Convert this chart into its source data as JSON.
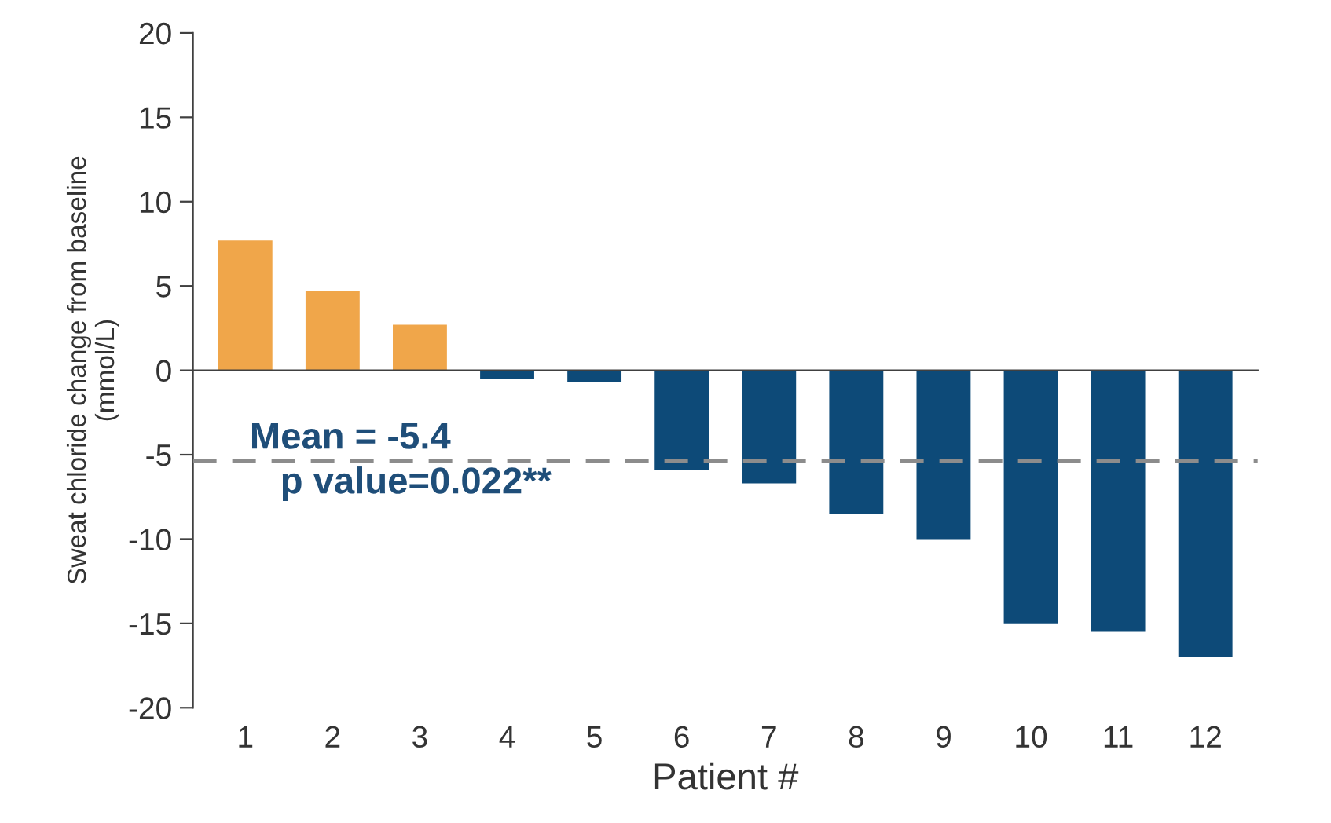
{
  "chart_data": {
    "type": "bar",
    "xlabel": "Patient #",
    "ylabel": "Sweat chloride change from baseline\n(mmol/L)",
    "categories": [
      "1",
      "2",
      "3",
      "4",
      "5",
      "6",
      "7",
      "8",
      "9",
      "10",
      "11",
      "12"
    ],
    "values": [
      7.7,
      4.7,
      2.7,
      -0.5,
      -0.7,
      -5.9,
      -6.7,
      -8.5,
      -10,
      -15,
      -15.5,
      -17
    ],
    "colors": [
      "#f0a64a",
      "#f0a64a",
      "#f0a64a",
      "#0d4a78",
      "#0d4a78",
      "#0d4a78",
      "#0d4a78",
      "#0d4a78",
      "#0d4a78",
      "#0d4a78",
      "#0d4a78",
      "#0d4a78"
    ],
    "ylim": [
      -20,
      20
    ],
    "yticks": [
      -20,
      -15,
      -10,
      -5,
      0,
      5,
      10,
      15,
      20
    ],
    "ref_lines": [
      {
        "axis": "y",
        "value": -5.4,
        "label": "Mean = -5.4",
        "color": "#8c8c8c",
        "line_style": "dashed"
      }
    ],
    "annotations": [
      "p value=0.022**"
    ],
    "legend": false
  }
}
